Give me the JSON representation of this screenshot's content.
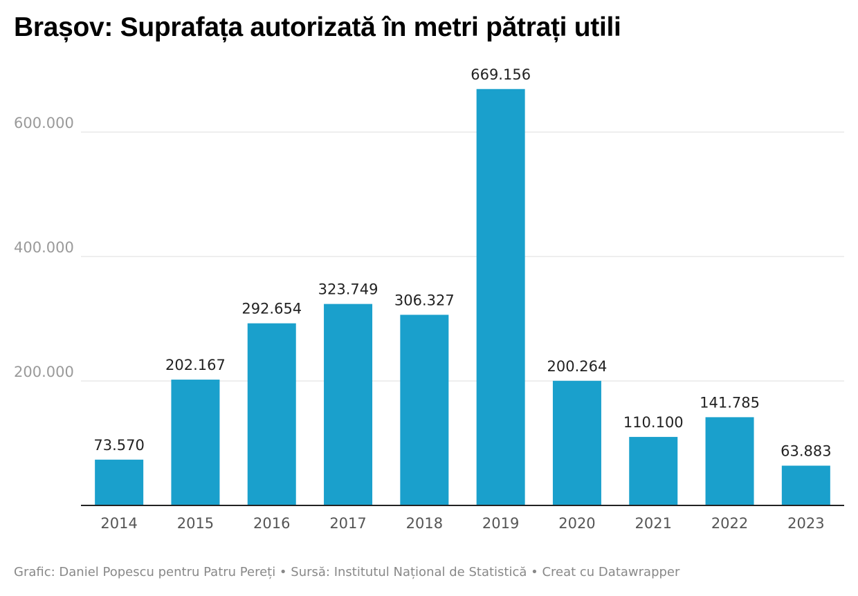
{
  "chart_data": {
    "type": "bar",
    "title": "Brașov: Suprafața autorizată în metri pătrați utili",
    "categories": [
      "2014",
      "2015",
      "2016",
      "2017",
      "2018",
      "2019",
      "2020",
      "2021",
      "2022",
      "2023"
    ],
    "values": [
      73570,
      202167,
      292654,
      323749,
      306327,
      669156,
      200264,
      110100,
      141785,
      63883
    ],
    "value_labels": [
      "73.570",
      "202.167",
      "292.654",
      "323.749",
      "306.327",
      "669.156",
      "200.264",
      "110.100",
      "141.785",
      "63.883"
    ],
    "yticks": [
      200000,
      400000,
      600000
    ],
    "ytick_labels": [
      "200.000",
      "400.000",
      "600.000"
    ],
    "ylim": [
      0,
      700000
    ],
    "grid": true,
    "bar_color": "#1aa0cc"
  },
  "footer": "Grafic: Daniel Popescu pentru Patru Pereți • Sursă: Institutul Național de Statistică • Creat cu Datawrapper"
}
